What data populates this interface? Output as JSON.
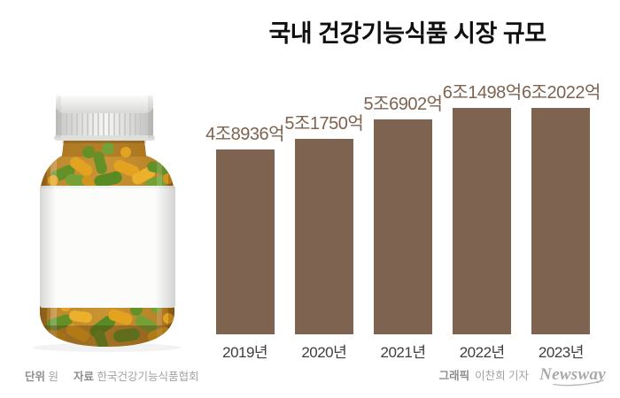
{
  "title": "국내 건강기능식품 시장 규모",
  "chart_data": {
    "type": "bar",
    "title": "국내 건강기능식품 시장 규모",
    "categories": [
      "2019년",
      "2020년",
      "2021년",
      "2022년",
      "2023년"
    ],
    "values": [
      48936,
      51750,
      56902,
      61498,
      62022
    ],
    "value_labels": [
      "4조8936억",
      "5조1750억",
      "5조6902억",
      "6조1498억",
      "6조2022억"
    ],
    "unit": "원",
    "xlabel": "",
    "ylabel": "",
    "ylim": [
      0,
      62022
    ],
    "grid": false,
    "legend": false,
    "bar_color": "#7d6350",
    "value_label_color": "#7d6350",
    "axis_label_color": "#3e3e3e"
  },
  "illustration": {
    "name": "pill-bottle",
    "bottle_color": "#c08a2e",
    "cap_color": "#eeeeec",
    "pill_colors": [
      "#3e9326",
      "#54a93a",
      "#f2ac1b",
      "#ffc22b"
    ]
  },
  "footer": {
    "unit_label": "단위",
    "unit_value": "원",
    "source_label": "자료",
    "source_value": "한국건강기능식품협회",
    "credit_label": "그래픽",
    "credit_value": "이찬희 기자",
    "brand": "Newsway"
  }
}
